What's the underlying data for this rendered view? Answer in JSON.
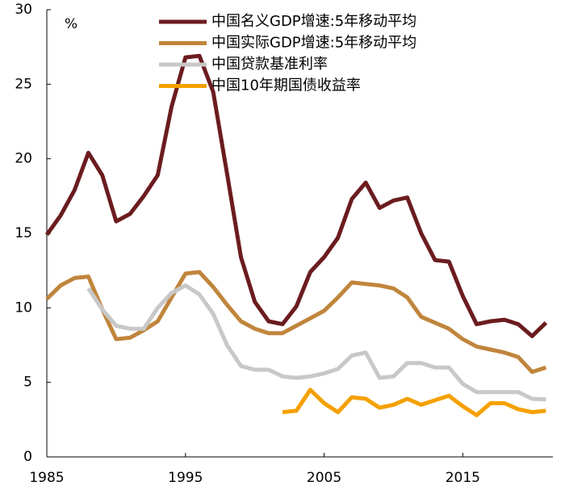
{
  "chart_data": {
    "type": "line",
    "ylabel": "%",
    "x": [
      1985,
      1986,
      1987,
      1988,
      1989,
      1990,
      1991,
      1992,
      1993,
      1994,
      1995,
      1996,
      1997,
      1998,
      1999,
      2000,
      2001,
      2002,
      2003,
      2004,
      2005,
      2006,
      2007,
      2008,
      2009,
      2010,
      2011,
      2012,
      2013,
      2014,
      2015,
      2016,
      2017,
      2018,
      2019,
      2020,
      2021
    ],
    "series": [
      {
        "name": "中国名义GDP增速:5年移动平均",
        "color": "#6b1c1f",
        "values": [
          14.9,
          16.2,
          17.9,
          20.4,
          18.9,
          15.8,
          16.3,
          17.5,
          18.9,
          23.5,
          26.8,
          26.9,
          24.5,
          19.0,
          13.4,
          10.4,
          9.1,
          8.9,
          10.1,
          12.4,
          13.4,
          14.7,
          17.3,
          18.4,
          16.7,
          17.2,
          17.4,
          15.0,
          13.2,
          13.1,
          10.8,
          8.9,
          9.1,
          9.2,
          8.9,
          8.1,
          9.0
        ]
      },
      {
        "name": "中国实际GDP增速:5年移动平均",
        "color": "#c0853c",
        "values": [
          10.6,
          11.5,
          12.0,
          12.1,
          9.9,
          7.9,
          8.0,
          8.5,
          9.1,
          10.7,
          12.3,
          12.4,
          11.4,
          10.2,
          9.1,
          8.6,
          8.3,
          8.3,
          8.8,
          9.3,
          9.8,
          10.7,
          11.7,
          11.6,
          11.5,
          11.3,
          10.7,
          9.4,
          9.0,
          8.6,
          7.9,
          7.4,
          7.2,
          7.0,
          6.7,
          5.7,
          6.0
        ]
      },
      {
        "name": "中国贷款基准利率",
        "color": "#c8c8c8",
        "values": [
          null,
          null,
          null,
          11.3,
          9.9,
          8.8,
          8.6,
          8.6,
          10.0,
          11.0,
          11.5,
          10.9,
          9.6,
          7.5,
          6.1,
          5.85,
          5.85,
          5.4,
          5.3,
          5.4,
          5.6,
          5.9,
          6.8,
          7.0,
          5.3,
          5.4,
          6.3,
          6.3,
          6.0,
          6.0,
          4.9,
          4.35,
          4.35,
          4.35,
          4.35,
          3.9,
          3.85
        ]
      },
      {
        "name": "中国10年期国债收益率",
        "color": "#f5a000",
        "values": [
          null,
          null,
          null,
          null,
          null,
          null,
          null,
          null,
          null,
          null,
          null,
          null,
          null,
          null,
          null,
          null,
          null,
          3.0,
          3.1,
          4.5,
          3.6,
          3.0,
          4.0,
          3.9,
          3.3,
          3.5,
          3.9,
          3.5,
          3.8,
          4.1,
          3.4,
          2.8,
          3.6,
          3.6,
          3.2,
          3.0,
          3.1
        ]
      }
    ],
    "xlim": [
      1985,
      2021.5
    ],
    "xticks": [
      1985,
      1995,
      2005,
      2015
    ],
    "ylim": [
      0,
      30
    ],
    "yticks": [
      0,
      5,
      10,
      15,
      20,
      25,
      30
    ]
  }
}
